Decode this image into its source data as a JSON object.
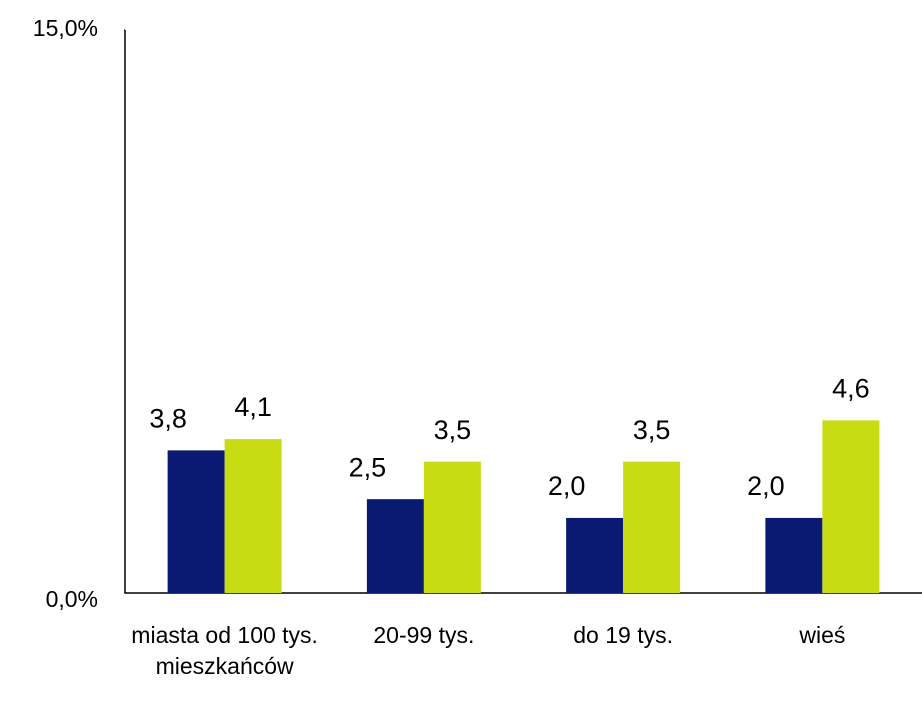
{
  "chart_data": {
    "type": "bar",
    "categories": [
      "miasta od 100 tys. mieszkańców",
      "20-99 tys.",
      "do 19 tys.",
      "wieś"
    ],
    "series": [
      {
        "color": "#0a1a73",
        "values": [
          3.8,
          2.5,
          2.0,
          2.0
        ],
        "value_labels": [
          "3,8",
          "2,5",
          "2,0",
          "2,0"
        ]
      },
      {
        "color": "#c8dc14",
        "values": [
          4.1,
          3.5,
          3.5,
          4.6
        ],
        "value_labels": [
          "4,1",
          "3,5",
          "3,5",
          "4,6"
        ]
      }
    ],
    "ylim": [
      0,
      15
    ],
    "yticks": [
      {
        "value": 0,
        "label": "0,0%"
      },
      {
        "value": 15,
        "label": "15,0%"
      }
    ],
    "grid": false
  }
}
